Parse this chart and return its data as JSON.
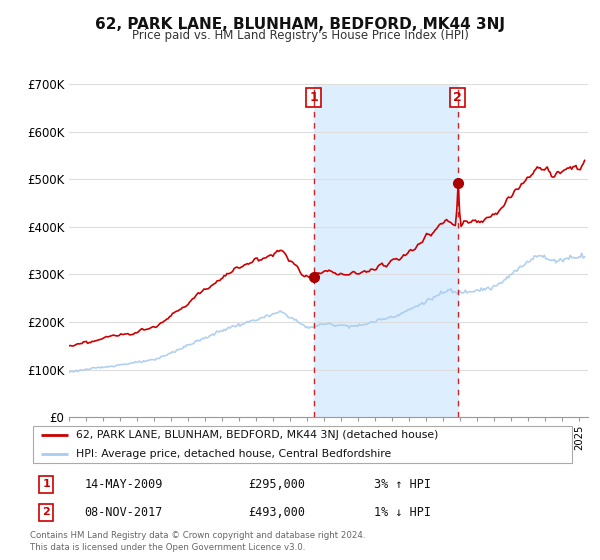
{
  "title": "62, PARK LANE, BLUNHAM, BEDFORD, MK44 3NJ",
  "subtitle": "Price paid vs. HM Land Registry's House Price Index (HPI)",
  "ylim": [
    0,
    700000
  ],
  "yticks": [
    0,
    100000,
    200000,
    300000,
    400000,
    500000,
    600000,
    700000
  ],
  "ytick_labels": [
    "£0",
    "£100K",
    "£200K",
    "£300K",
    "£400K",
    "£500K",
    "£600K",
    "£700K"
  ],
  "xmin": 1995.0,
  "xmax": 2025.5,
  "sale1_x": 2009.37,
  "sale1_y": 295000,
  "sale1_label": "1",
  "sale1_date": "14-MAY-2009",
  "sale1_price": "£295,000",
  "sale1_hpi": "3% ↑ HPI",
  "sale2_x": 2017.85,
  "sale2_y": 493000,
  "sale2_label": "2",
  "sale2_date": "08-NOV-2017",
  "sale2_price": "£493,000",
  "sale2_hpi": "1% ↓ HPI",
  "line_color_property": "#cc0000",
  "line_color_hpi": "#aaccee",
  "background_color": "#ffffff",
  "shaded_color": "#ddeeff",
  "grid_color": "#dddddd",
  "legend_label_property": "62, PARK LANE, BLUNHAM, BEDFORD, MK44 3NJ (detached house)",
  "legend_label_hpi": "HPI: Average price, detached house, Central Bedfordshire",
  "footer": "Contains HM Land Registry data © Crown copyright and database right 2024.\nThis data is licensed under the Open Government Licence v3.0."
}
